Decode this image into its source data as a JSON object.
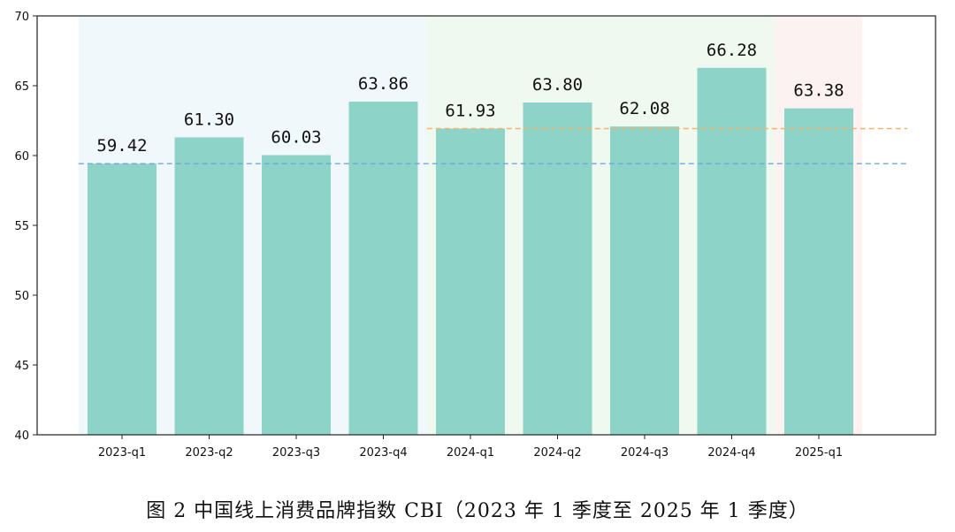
{
  "caption": "图 2 中国线上消费品牌指数 CBI（2023 年 1 季度至 2025 年 1 季度）",
  "chart_data": {
    "type": "bar",
    "title": "",
    "xlabel": "",
    "ylabel": "",
    "categories": [
      "2023-q1",
      "2023-q2",
      "2023-q3",
      "2023-q4",
      "2024-q1",
      "2024-q2",
      "2024-q3",
      "2024-q4",
      "2025-q1"
    ],
    "values": [
      59.42,
      61.3,
      60.03,
      63.86,
      61.93,
      63.8,
      62.08,
      66.28,
      63.38
    ],
    "value_labels": [
      "59.42",
      "61.30",
      "60.03",
      "63.86",
      "61.93",
      "63.80",
      "62.08",
      "66.28",
      "63.38"
    ],
    "ylim": [
      40,
      70
    ],
    "yticks": [
      40,
      45,
      50,
      55,
      60,
      65,
      70
    ],
    "bar_color": "#8dd3c7",
    "reference_lines": [
      {
        "value": 59.42,
        "from_category": 0,
        "color": "#6fa8dc",
        "style": "dashed"
      },
      {
        "value": 61.93,
        "from_category": 4,
        "color": "#f6b26b",
        "style": "dashed"
      }
    ],
    "year_bands": [
      {
        "categories": [
          0,
          3
        ],
        "color": "#e8f4f8"
      },
      {
        "categories": [
          4,
          7
        ],
        "color": "#e6f5e6"
      },
      {
        "categories": [
          8,
          8
        ],
        "color": "#fbe9ea"
      }
    ],
    "grid": false
  }
}
